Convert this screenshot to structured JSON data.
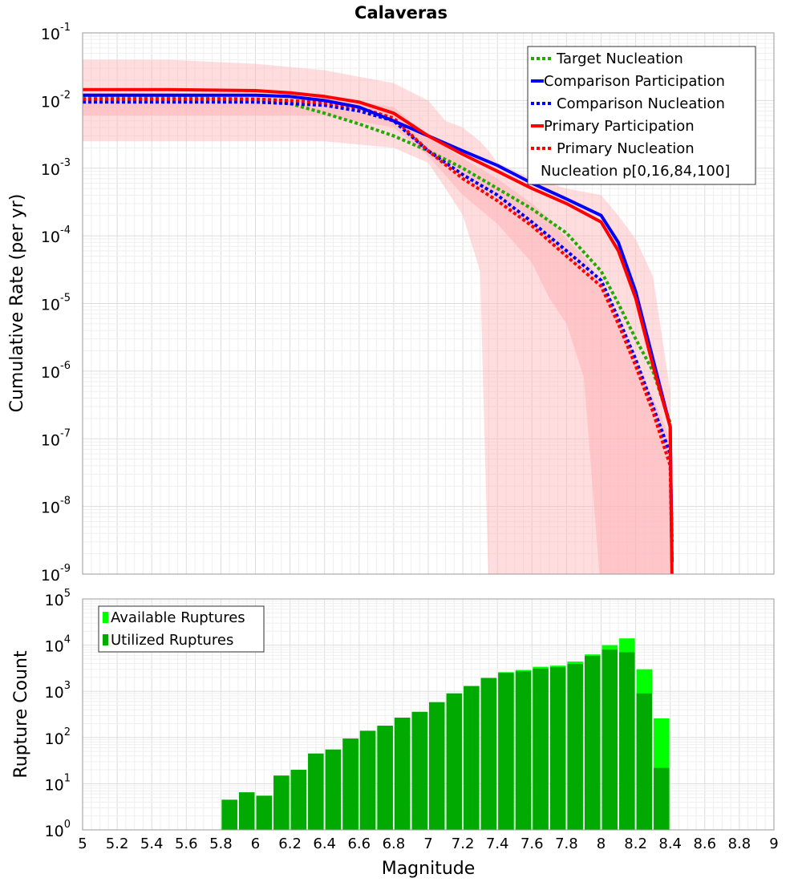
{
  "chart_data": [
    {
      "type": "line",
      "title": "Calaveras",
      "ylabel": "Cumulative Rate (per yr)",
      "xlabel": "",
      "xlim": [
        5,
        9
      ],
      "ylim_exp": [
        -9,
        -1
      ],
      "y_scale": "log",
      "y_tick_base": "10",
      "y_tick_exponents": [
        "-1",
        "-2",
        "-3",
        "-4",
        "-5",
        "-6",
        "-7",
        "-8",
        "-9"
      ],
      "grid": true,
      "legend_position": "top-right",
      "legend": [
        {
          "label": "Target Nucleation",
          "color": "#22aa00",
          "style": "dotted"
        },
        {
          "label": "Comparison Participation",
          "color": "#0000ff",
          "style": "solid"
        },
        {
          "label": "Comparison Nucleation",
          "color": "#0000ff",
          "style": "dotted"
        },
        {
          "label": "Primary Participation",
          "color": "#ff0000",
          "style": "solid"
        },
        {
          "label": "Primary Nucleation",
          "color": "#ff0000",
          "style": "dotted"
        },
        {
          "label": "Nucleation p[0,16,84,100]",
          "color": "none",
          "style": "none"
        }
      ],
      "series": [
        {
          "name": "Target Nucleation",
          "color": "#22aa00",
          "style": "dotted",
          "x": [
            5.0,
            5.5,
            6.0,
            6.2,
            6.4,
            6.6,
            6.8,
            7.0,
            7.2,
            7.4,
            7.6,
            7.8,
            8.0,
            8.1,
            8.2,
            8.3,
            8.4
          ],
          "y": [
            0.011,
            0.011,
            0.0105,
            0.009,
            0.0065,
            0.0045,
            0.003,
            0.0018,
            0.001,
            0.0005,
            0.00025,
            0.00011,
            3e-05,
            1e-05,
            3e-06,
            1e-06,
            1.7e-07
          ]
        },
        {
          "name": "Comparison Participation",
          "color": "#0000ff",
          "style": "solid",
          "x": [
            5.0,
            5.5,
            6.0,
            6.2,
            6.4,
            6.6,
            6.8,
            7.0,
            7.2,
            7.4,
            7.6,
            7.8,
            8.0,
            8.1,
            8.2,
            8.3,
            8.4,
            8.41
          ],
          "y": [
            0.012,
            0.012,
            0.012,
            0.0115,
            0.01,
            0.008,
            0.005,
            0.003,
            0.0018,
            0.0011,
            0.0006,
            0.00035,
            0.0002,
            8e-05,
            1.5e-05,
            1.5e-06,
            1.5e-07,
            1.5e-09
          ]
        },
        {
          "name": "Comparison Nucleation",
          "color": "#0000ff",
          "style": "dotted",
          "x": [
            5.0,
            5.5,
            6.0,
            6.2,
            6.4,
            6.6,
            6.8,
            7.0,
            7.2,
            7.4,
            7.6,
            7.8,
            8.0,
            8.1,
            8.2,
            8.3,
            8.4,
            8.41
          ],
          "y": [
            0.0095,
            0.0095,
            0.0095,
            0.009,
            0.0085,
            0.007,
            0.005,
            0.0018,
            0.0008,
            0.0004,
            0.00016,
            6e-05,
            2.2e-05,
            6e-06,
            1.5e-06,
            3e-07,
            6e-08,
            3e-09
          ]
        },
        {
          "name": "Primary Participation",
          "color": "#ff0000",
          "style": "solid",
          "x": [
            5.0,
            5.5,
            6.0,
            6.2,
            6.4,
            6.6,
            6.8,
            7.0,
            7.2,
            7.4,
            7.6,
            7.8,
            8.0,
            8.1,
            8.2,
            8.3,
            8.4,
            8.41
          ],
          "y": [
            0.0145,
            0.0145,
            0.014,
            0.013,
            0.0115,
            0.0095,
            0.0065,
            0.003,
            0.0016,
            0.0009,
            0.0005,
            0.0003,
            0.00016,
            6e-05,
            1.2e-05,
            1.2e-06,
            1.5e-07,
            9e-10
          ]
        },
        {
          "name": "Primary Nucleation",
          "color": "#ff0000",
          "style": "dotted",
          "x": [
            5.0,
            5.5,
            6.0,
            6.2,
            6.4,
            6.6,
            6.8,
            7.0,
            7.2,
            7.4,
            7.6,
            7.8,
            8.0,
            8.1,
            8.2,
            8.3,
            8.4,
            8.41
          ],
          "y": [
            0.0105,
            0.0105,
            0.0105,
            0.01,
            0.0092,
            0.0078,
            0.0055,
            0.0018,
            0.0007,
            0.00033,
            0.00014,
            5e-05,
            1.8e-05,
            5e-06,
            1.2e-06,
            2.5e-07,
            4e-08,
            1.5e-09
          ]
        }
      ],
      "bands": [
        {
          "name": "Nucleation p[0,100]",
          "color": "#ffb3b8",
          "opacity": 0.45,
          "x": [
            5.0,
            5.5,
            6.0,
            6.4,
            6.8,
            7.0,
            7.1,
            7.2,
            7.3,
            7.35,
            7.4,
            7.6,
            7.8,
            8.0,
            8.1,
            8.2,
            8.3,
            8.4
          ],
          "lower": [
            0.0025,
            0.0025,
            0.0025,
            0.0025,
            0.002,
            0.0012,
            0.0005,
            0.0002,
            3e-05,
            5e-10,
            5e-10,
            5e-10,
            5e-10,
            5e-10,
            5e-10,
            5e-10,
            5e-10,
            5e-10
          ],
          "upper": [
            0.04,
            0.04,
            0.035,
            0.028,
            0.018,
            0.01,
            0.005,
            0.004,
            0.0025,
            0.0018,
            0.0012,
            0.0007,
            0.0005,
            0.0004,
            0.0002,
            9e-05,
            2.5e-05,
            5e-07
          ]
        },
        {
          "name": "Nucleation p[16,84]",
          "color": "#ffb3b8",
          "opacity": 0.55,
          "x": [
            5.0,
            5.5,
            6.0,
            6.4,
            6.8,
            7.0,
            7.2,
            7.4,
            7.6,
            7.7,
            7.8,
            7.9,
            8.0,
            8.1,
            8.15,
            8.2,
            8.3,
            8.4
          ],
          "lower": [
            0.006,
            0.006,
            0.006,
            0.006,
            0.004,
            0.0015,
            0.0004,
            0.00015,
            4e-05,
            1.2e-05,
            5e-06,
            8e-07,
            5e-10,
            5e-10,
            5e-10,
            5e-10,
            5e-10,
            5e-10
          ],
          "upper": [
            0.013,
            0.013,
            0.012,
            0.011,
            0.008,
            0.003,
            0.0014,
            0.0007,
            0.0003,
            0.00018,
            9e-05,
            5e-05,
            2e-05,
            6e-06,
            3e-06,
            1.5e-06,
            4e-07,
            1e-07
          ]
        }
      ]
    },
    {
      "type": "bar",
      "xlabel": "Magnitude",
      "ylabel": "Rupture Count",
      "xlim": [
        5,
        9
      ],
      "ylim_exp": [
        0,
        5
      ],
      "y_scale": "log",
      "y_tick_base": "10",
      "y_tick_exponents": [
        "5",
        "4",
        "3",
        "2",
        "1",
        "0"
      ],
      "x_ticks": [
        "5",
        "5.2",
        "5.4",
        "5.6",
        "5.8",
        "6",
        "6.2",
        "6.4",
        "6.6",
        "6.8",
        "7",
        "7.2",
        "7.4",
        "7.6",
        "7.8",
        "8",
        "8.2",
        "8.4",
        "8.6",
        "8.8",
        "9"
      ],
      "grid": true,
      "legend_position": "top-left",
      "bin_width": 0.1,
      "legend": [
        {
          "label": "Available Ruptures",
          "color": "#00ff00"
        },
        {
          "label": "Utilized Ruptures",
          "color": "#00aa00"
        }
      ],
      "x": [
        5.85,
        5.95,
        6.05,
        6.15,
        6.25,
        6.35,
        6.45,
        6.55,
        6.65,
        6.75,
        6.85,
        6.95,
        7.05,
        7.15,
        7.25,
        7.35,
        7.45,
        7.55,
        7.65,
        7.75,
        7.85,
        7.95,
        8.05,
        8.15,
        8.25,
        8.35
      ],
      "series": [
        {
          "name": "Available Ruptures",
          "color": "#00ff00",
          "values": [
            4.5,
            6.5,
            5.5,
            15,
            20,
            45,
            55,
            95,
            140,
            180,
            270,
            360,
            580,
            900,
            1300,
            1950,
            2600,
            2900,
            3400,
            3600,
            4400,
            6300,
            10000,
            14000,
            3000,
            260
          ]
        },
        {
          "name": "Utilized Ruptures",
          "color": "#00aa00",
          "values": [
            4.5,
            6.5,
            5.5,
            15,
            20,
            45,
            55,
            95,
            140,
            180,
            270,
            360,
            580,
            900,
            1300,
            1950,
            2500,
            2700,
            3100,
            3300,
            3900,
            5800,
            8000,
            7000,
            900,
            22
          ]
        }
      ]
    }
  ]
}
